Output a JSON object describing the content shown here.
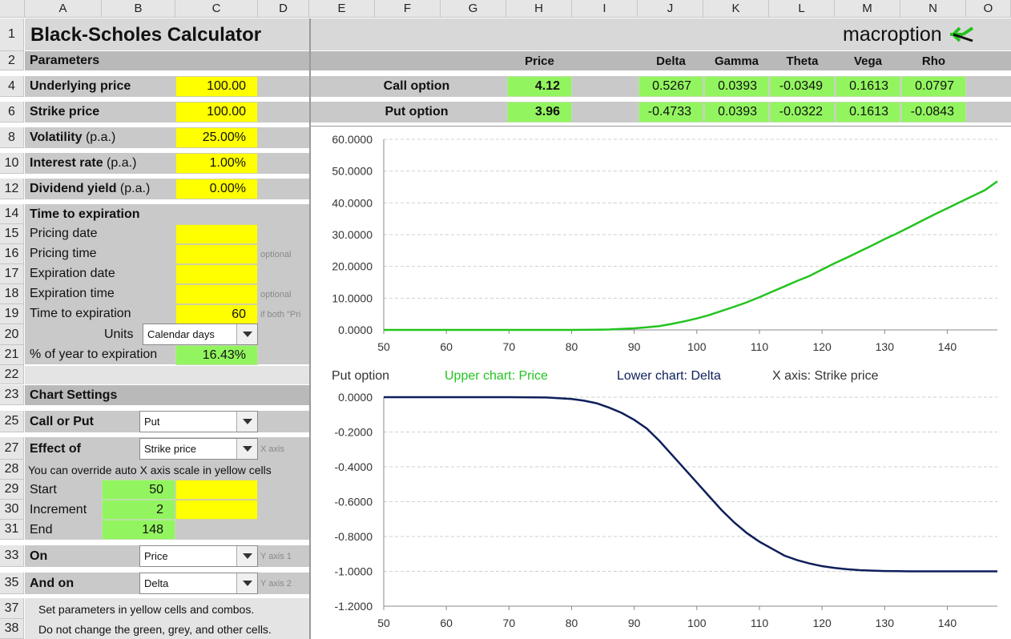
{
  "columns": [
    "A",
    "B",
    "C",
    "D",
    "E",
    "F",
    "G",
    "H",
    "I",
    "J",
    "K",
    "L",
    "M",
    "N",
    "O"
  ],
  "rows": [
    "1",
    "2",
    "4",
    "6",
    "8",
    "10",
    "12",
    "14",
    "15",
    "16",
    "17",
    "18",
    "19",
    "20",
    "21",
    "22",
    "23",
    "25",
    "27",
    "28",
    "29",
    "30",
    "31",
    "33",
    "35",
    "37",
    "38"
  ],
  "title": "Black-Scholes Calculator",
  "brand": "macroption",
  "brand_color": "#22c31f",
  "parameters": {
    "header": "Parameters",
    "underlying_label": "Underlying price",
    "underlying_value": "100.00",
    "strike_label": "Strike price",
    "strike_value": "100.00",
    "volatility_label": "Volatility",
    "volatility_suffix": "(p.a.)",
    "volatility_value": "25.00%",
    "interest_label": "Interest rate",
    "interest_suffix": "(p.a.)",
    "interest_value": "1.00%",
    "dividend_label": "Dividend yield",
    "dividend_suffix": "(p.a.)",
    "dividend_value": "0.00%"
  },
  "time": {
    "header": "Time to expiration",
    "pricing_date": "Pricing date",
    "pricing_time": "Pricing time",
    "pricing_time_note": "optional",
    "expiration_date": "Expiration date",
    "expiration_time": "Expiration time",
    "expiration_time_note": "optional",
    "tte_label": "Time to expiration",
    "tte_value": "60",
    "tte_note": "if both \"Pri",
    "units_label": "Units",
    "units_value": "Calendar days",
    "pct_label": "% of year to expiration",
    "pct_value": "16.43%"
  },
  "chart_settings": {
    "header": "Chart Settings",
    "call_put_label": "Call or Put",
    "call_put_value": "Put",
    "effect_label": "Effect of",
    "effect_value": "Strike price",
    "effect_note": "X axis",
    "override_note": "You can override auto X axis scale in yellow cells",
    "start_label": "Start",
    "start_value": "50",
    "increment_label": "Increment",
    "increment_value": "2",
    "end_label": "End",
    "end_value": "148",
    "on_label": "On",
    "on_value": "Price",
    "on_note": "Y axis 1",
    "andon_label": "And on",
    "andon_value": "Delta",
    "andon_note": "Y axis 2",
    "note1": "Set parameters in yellow cells and combos.",
    "note2": "Do not change the green, grey, and other cells."
  },
  "results": {
    "headers": {
      "price": "Price",
      "delta": "Delta",
      "gamma": "Gamma",
      "theta": "Theta",
      "vega": "Vega",
      "rho": "Rho"
    },
    "call": {
      "label": "Call option",
      "price": "4.12",
      "delta": "0.5267",
      "gamma": "0.0393",
      "theta": "-0.0349",
      "vega": "0.1613",
      "rho": "0.0797"
    },
    "put": {
      "label": "Put option",
      "price": "3.96",
      "delta": "-0.4733",
      "gamma": "0.0393",
      "theta": "-0.0322",
      "vega": "0.1613",
      "rho": "-0.0843"
    }
  },
  "chart_caption": {
    "option": "Put option",
    "upper": "Upper chart: Price",
    "lower": "Lower chart: Delta",
    "xaxis": "X axis: Strike price"
  },
  "chart_data": [
    {
      "type": "line",
      "color": "#22c31f",
      "xlim": [
        50,
        148
      ],
      "ylim": [
        0,
        60
      ],
      "x_ticks": [
        "50",
        "60",
        "70",
        "80",
        "90",
        "100",
        "110",
        "120",
        "130",
        "140"
      ],
      "y_ticks": [
        "60.0000",
        "50.0000",
        "40.0000",
        "30.0000",
        "20.0000",
        "10.0000",
        "0.0000"
      ],
      "series": [
        {
          "x": [
            50,
            60,
            70,
            80,
            84,
            86,
            88,
            90,
            92,
            94,
            96,
            98,
            100,
            102,
            104,
            106,
            108,
            110,
            112,
            114,
            116,
            118,
            120,
            122,
            124,
            126,
            128,
            130,
            132,
            134,
            136,
            138,
            140,
            142,
            144,
            146,
            148
          ],
          "values": [
            0,
            0,
            0,
            0.01,
            0.05,
            0.12,
            0.3,
            0.5,
            0.8,
            1.2,
            1.9,
            2.7,
            3.6,
            4.7,
            6.0,
            7.3,
            8.7,
            10.3,
            12.0,
            13.7,
            15.4,
            17.0,
            19.0,
            21.0,
            22.8,
            24.7,
            26.6,
            28.6,
            30.4,
            32.4,
            34.4,
            36.4,
            38.3,
            40.2,
            42.1,
            44.0,
            46.8
          ]
        }
      ]
    },
    {
      "type": "line",
      "color": "#0d1f5a",
      "xlim": [
        50,
        148
      ],
      "ylim": [
        -1.2,
        0
      ],
      "x_ticks": [
        "50",
        "60",
        "70",
        "80",
        "90",
        "100",
        "110",
        "120",
        "130",
        "140"
      ],
      "y_ticks": [
        "0.0000",
        "-0.2000",
        "-0.4000",
        "-0.6000",
        "-0.8000",
        "-1.0000",
        "-1.2000"
      ],
      "series": [
        {
          "x": [
            50,
            60,
            70,
            76,
            80,
            82,
            84,
            86,
            88,
            90,
            92,
            94,
            96,
            98,
            100,
            102,
            104,
            106,
            108,
            110,
            112,
            114,
            116,
            118,
            120,
            122,
            124,
            126,
            128,
            130,
            132,
            134,
            140,
            148
          ],
          "values": [
            0,
            0,
            0,
            -0.002,
            -0.01,
            -0.02,
            -0.035,
            -0.06,
            -0.09,
            -0.13,
            -0.18,
            -0.25,
            -0.33,
            -0.41,
            -0.49,
            -0.57,
            -0.65,
            -0.72,
            -0.78,
            -0.83,
            -0.87,
            -0.91,
            -0.935,
            -0.955,
            -0.97,
            -0.98,
            -0.988,
            -0.993,
            -0.996,
            -0.998,
            -0.999,
            -1.0,
            -1.0,
            -1.0
          ]
        }
      ]
    }
  ]
}
